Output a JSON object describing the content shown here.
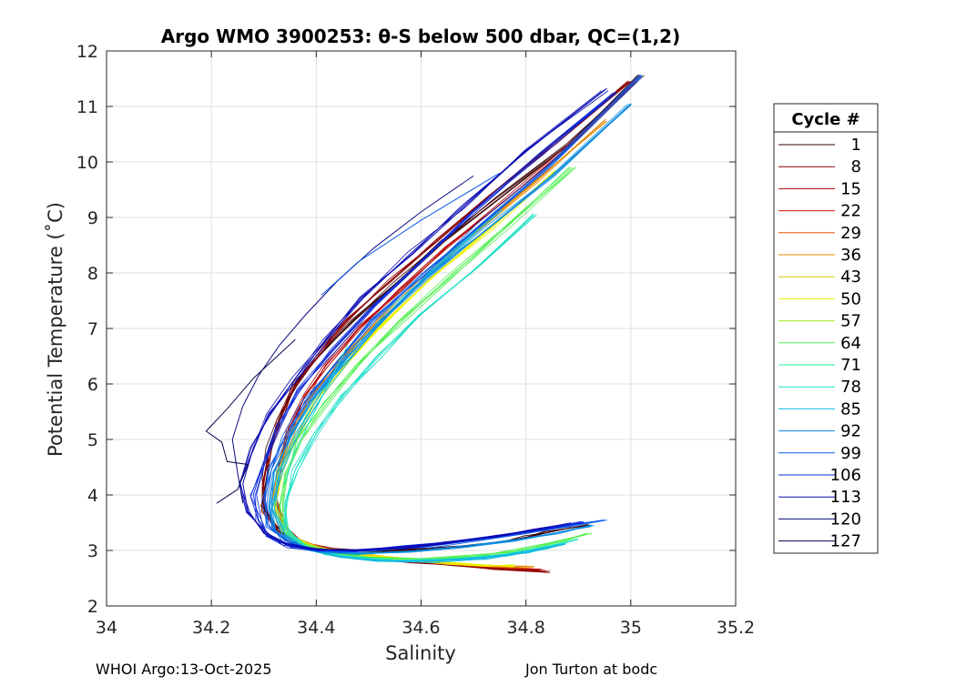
{
  "chart_data": {
    "type": "line",
    "title": "Argo WMO 3900253: θ-S below 500 dbar,  QC=(1,2)",
    "xlabel": "Salinity",
    "ylabel": "Potential Temperature (˚C)",
    "xlim": [
      34,
      35.2
    ],
    "ylim": [
      2,
      12
    ],
    "xticks": [
      34,
      34.2,
      34.4,
      34.6,
      34.8,
      35,
      35.2
    ],
    "xtick_labels": [
      "34",
      "34.2",
      "34.4",
      "34.6",
      "34.8",
      "35",
      "35.2"
    ],
    "yticks": [
      2,
      3,
      4,
      5,
      6,
      7,
      8,
      9,
      10,
      11,
      12
    ],
    "ytick_labels": [
      "2",
      "3",
      "4",
      "5",
      "6",
      "7",
      "8",
      "9",
      "10",
      "11",
      "12"
    ],
    "grid": true,
    "legend": {
      "title": "Cycle #",
      "placement": "outside-right",
      "entries": [
        {
          "label": "1",
          "color": "#3a0000"
        },
        {
          "label": "8",
          "color": "#8c0000"
        },
        {
          "label": "15",
          "color": "#b40000"
        },
        {
          "label": "22",
          "color": "#d21a00"
        },
        {
          "label": "29",
          "color": "#e65000"
        },
        {
          "label": "36",
          "color": "#e68a00"
        },
        {
          "label": "43",
          "color": "#d8c800"
        },
        {
          "label": "50",
          "color": "#f0f000"
        },
        {
          "label": "57",
          "color": "#a0f020"
        },
        {
          "label": "64",
          "color": "#50f050"
        },
        {
          "label": "71",
          "color": "#20f090"
        },
        {
          "label": "78",
          "color": "#20e0c8"
        },
        {
          "label": "85",
          "color": "#10b8e0"
        },
        {
          "label": "92",
          "color": "#0a8ce0"
        },
        {
          "label": "99",
          "color": "#0a5ae6"
        },
        {
          "label": "106",
          "color": "#0a28d8"
        },
        {
          "label": "113",
          "color": "#0a0ab4"
        },
        {
          "label": "120",
          "color": "#0a0a80"
        },
        {
          "label": "127",
          "color": "#05054a"
        }
      ]
    },
    "series": [
      {
        "color": "#3a0000",
        "x": [
          34.92,
          34.88,
          34.84,
          34.8,
          34.76,
          34.7,
          34.62,
          34.54,
          34.47,
          34.41,
          34.36,
          34.32,
          34.3,
          34.3,
          34.31,
          34.33,
          34.36,
          34.41,
          34.47,
          34.55,
          34.64,
          34.75,
          34.88,
          35.02
        ],
        "y": [
          3.45,
          3.4,
          3.32,
          3.24,
          3.17,
          3.09,
          3.03,
          2.99,
          3.0,
          3.05,
          3.17,
          3.4,
          3.8,
          4.3,
          4.85,
          5.4,
          6.0,
          6.55,
          7.15,
          7.8,
          8.55,
          9.35,
          10.3,
          11.55
        ]
      },
      {
        "color": "#8c0000",
        "x": [
          34.84,
          34.8,
          34.74,
          34.66,
          34.58,
          34.5,
          34.43,
          34.37,
          34.33,
          34.3,
          34.3,
          34.31,
          34.33,
          34.36,
          34.4,
          34.46,
          34.54,
          34.63,
          34.73,
          34.86,
          35.0
        ],
        "y": [
          2.62,
          2.64,
          2.68,
          2.74,
          2.8,
          2.88,
          2.98,
          3.12,
          3.33,
          3.72,
          4.2,
          4.8,
          5.35,
          5.95,
          6.5,
          7.15,
          7.85,
          8.6,
          9.4,
          10.35,
          11.45
        ]
      },
      {
        "color": "#b40000",
        "x": [
          34.83,
          34.78,
          34.72,
          34.64,
          34.56,
          34.48,
          34.42,
          34.37,
          34.34,
          34.32,
          34.33,
          34.35,
          34.38,
          34.42,
          34.48,
          34.56,
          34.65,
          34.76,
          34.88,
          35.01
        ],
        "y": [
          2.66,
          2.68,
          2.72,
          2.78,
          2.85,
          2.93,
          3.03,
          3.18,
          3.45,
          3.95,
          4.6,
          5.2,
          5.8,
          6.35,
          7.0,
          7.7,
          8.45,
          9.3,
          10.25,
          11.45
        ]
      },
      {
        "color": "#e68a00",
        "x": [
          34.81,
          34.76,
          34.7,
          34.62,
          34.54,
          34.47,
          34.41,
          34.36,
          34.33,
          34.32,
          34.33,
          34.35,
          34.39,
          34.44,
          34.51,
          34.6,
          34.7,
          34.82,
          34.95
        ],
        "y": [
          2.7,
          2.71,
          2.74,
          2.8,
          2.87,
          2.95,
          3.05,
          3.22,
          3.5,
          3.95,
          4.5,
          5.1,
          5.75,
          6.35,
          7.05,
          7.85,
          8.7,
          9.65,
          10.75
        ]
      },
      {
        "color": "#f0f000",
        "x": [
          34.78,
          34.72,
          34.66,
          34.58,
          34.5,
          34.43,
          34.38,
          34.34,
          34.32,
          34.33,
          34.36,
          34.4,
          34.46,
          34.53,
          34.62,
          34.73,
          34.86
        ],
        "y": [
          2.72,
          2.73,
          2.77,
          2.83,
          2.9,
          2.99,
          3.12,
          3.35,
          3.8,
          4.4,
          5.05,
          5.7,
          6.4,
          7.1,
          7.9,
          8.8,
          9.85
        ]
      },
      {
        "color": "#50f050",
        "x": [
          34.92,
          34.86,
          34.78,
          34.7,
          34.6,
          34.5,
          34.43,
          34.38,
          34.34,
          34.33,
          34.34,
          34.37,
          34.42,
          34.48,
          34.56,
          34.65,
          34.76,
          34.89
        ],
        "y": [
          3.3,
          3.15,
          3.0,
          2.9,
          2.84,
          2.86,
          2.95,
          3.1,
          3.35,
          3.8,
          4.35,
          5.0,
          5.65,
          6.35,
          7.1,
          7.9,
          8.8,
          9.9
        ]
      },
      {
        "color": "#20e0c8",
        "x": [
          34.9,
          34.84,
          34.76,
          34.68,
          34.58,
          34.49,
          34.42,
          34.37,
          34.34,
          34.34,
          34.36,
          34.4,
          34.45,
          34.52,
          34.6,
          34.7,
          34.82
        ],
        "y": [
          3.2,
          3.05,
          2.92,
          2.85,
          2.82,
          2.85,
          2.94,
          3.1,
          3.4,
          3.85,
          4.45,
          5.1,
          5.8,
          6.5,
          7.25,
          8.05,
          9.05
        ]
      },
      {
        "color": "#10b8e0",
        "x": [
          34.87,
          34.8,
          34.72,
          34.62,
          34.52,
          34.44,
          34.38,
          34.34,
          34.32,
          34.33,
          34.36,
          34.41,
          34.47,
          34.55,
          34.64,
          34.75
        ],
        "y": [
          3.1,
          2.96,
          2.86,
          2.8,
          2.82,
          2.9,
          3.05,
          3.3,
          3.75,
          4.4,
          5.1,
          5.85,
          6.6,
          7.4,
          8.2,
          9.15
        ]
      },
      {
        "color": "#0a8ce0",
        "x": [
          34.93,
          34.86,
          34.78,
          34.68,
          34.58,
          34.48,
          34.41,
          34.36,
          34.32,
          34.31,
          34.32,
          34.35,
          34.39,
          34.45,
          34.52,
          34.61,
          34.72,
          34.85,
          35.0
        ],
        "y": [
          3.45,
          3.32,
          3.18,
          3.06,
          2.97,
          2.94,
          2.98,
          3.1,
          3.35,
          3.8,
          4.4,
          5.05,
          5.7,
          6.4,
          7.1,
          7.9,
          8.75,
          9.75,
          11.05
        ]
      },
      {
        "color": "#0a5ae6",
        "x": [
          34.95,
          34.88,
          34.8,
          34.72,
          34.62,
          34.52,
          34.45,
          34.39,
          34.34,
          34.31,
          34.3,
          34.31,
          34.34,
          34.38,
          34.44,
          34.51,
          34.6,
          34.71,
          34.84,
          35.02
        ],
        "y": [
          3.55,
          3.45,
          3.32,
          3.2,
          3.08,
          3.0,
          2.98,
          3.03,
          3.18,
          3.45,
          3.9,
          4.45,
          5.05,
          5.7,
          6.4,
          7.15,
          7.95,
          8.85,
          9.9,
          11.55
        ]
      },
      {
        "color": "#0a28d8",
        "x": [
          34.91,
          34.84,
          34.76,
          34.67,
          34.57,
          34.48,
          34.41,
          34.35,
          34.31,
          34.29,
          34.28,
          34.3,
          34.33,
          34.37,
          34.43,
          34.51,
          34.6,
          34.7,
          34.83,
          34.97
        ],
        "y": [
          3.5,
          3.4,
          3.28,
          3.16,
          3.06,
          3.0,
          3.0,
          3.07,
          3.25,
          3.55,
          4.0,
          4.6,
          5.25,
          5.9,
          6.6,
          7.4,
          8.2,
          9.1,
          10.15,
          11.25
        ]
      },
      {
        "color": "#0a0ab4",
        "x": [
          34.88,
          34.82,
          34.74,
          34.65,
          34.56,
          34.47,
          34.4,
          34.34,
          34.3,
          34.27,
          34.26,
          34.28,
          34.31,
          34.36,
          34.42,
          34.49,
          34.58,
          34.68,
          34.8,
          34.95
        ],
        "y": [
          3.48,
          3.38,
          3.26,
          3.14,
          3.05,
          3.0,
          3.02,
          3.12,
          3.32,
          3.7,
          4.2,
          4.85,
          5.45,
          6.1,
          6.8,
          7.55,
          8.35,
          9.2,
          10.2,
          11.3
        ]
      },
      {
        "color": "#0a0a80",
        "x": [
          34.26,
          34.25,
          34.24,
          34.26,
          34.29,
          34.33,
          34.38,
          34.44,
          34.51,
          34.6,
          34.7
        ],
        "y": [
          3.85,
          4.4,
          5.0,
          5.6,
          6.15,
          6.7,
          7.25,
          7.85,
          8.45,
          9.1,
          9.75
        ]
      },
      {
        "color": "#05054a",
        "x": [
          34.21,
          34.25,
          34.27,
          34.23,
          34.22,
          34.19,
          34.23,
          34.28,
          34.36
        ],
        "y": [
          3.85,
          4.1,
          4.55,
          4.6,
          4.95,
          5.15,
          5.55,
          6.1,
          6.8
        ]
      },
      {
        "color": "#20e0c8",
        "x": [
          34.34,
          34.36,
          34.46
        ],
        "y": [
          4.2,
          4.8,
          6.7
        ]
      },
      {
        "color": "#0a5ae6",
        "x": [
          34.75,
          34.6,
          34.48,
          34.41
        ],
        "y": [
          9.8,
          8.95,
          8.2,
          7.6
        ]
      }
    ]
  },
  "footer": {
    "left": "WHOI Argo:13-Oct-2025",
    "right": "Jon Turton at bodc"
  }
}
